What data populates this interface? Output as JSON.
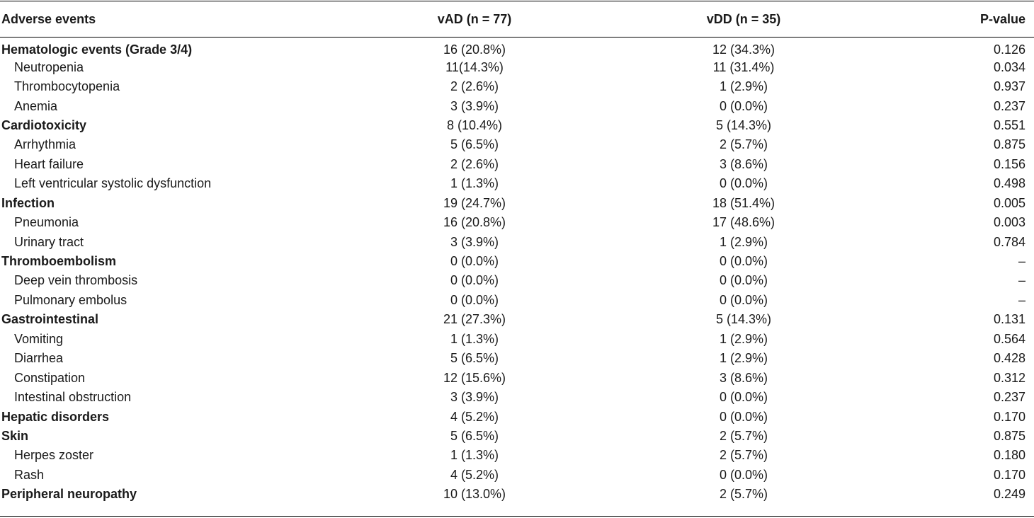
{
  "table": {
    "headers": [
      "Adverse events",
      "vAD (n = 77)",
      "vDD (n = 35)",
      "P-value"
    ],
    "rows": [
      {
        "label": "Hematologic events (Grade 3/4)",
        "group": true,
        "vad": "16 (20.8%)",
        "vdd": "12 (34.3%)",
        "p": "0.126"
      },
      {
        "label": "Neutropenia",
        "group": false,
        "vad": "11(14.3%)",
        "vdd": "11 (31.4%)",
        "p": "0.034"
      },
      {
        "label": "Thrombocytopenia",
        "group": false,
        "vad": "2 (2.6%)",
        "vdd": "1 (2.9%)",
        "p": "0.937"
      },
      {
        "label": "Anemia",
        "group": false,
        "vad": "3 (3.9%)",
        "vdd": "0 (0.0%)",
        "p": "0.237"
      },
      {
        "label": "Cardiotoxicity",
        "group": true,
        "vad": "8 (10.4%)",
        "vdd": "5 (14.3%)",
        "p": "0.551"
      },
      {
        "label": "Arrhythmia",
        "group": false,
        "vad": "5 (6.5%)",
        "vdd": "2 (5.7%)",
        "p": "0.875"
      },
      {
        "label": "Heart failure",
        "group": false,
        "vad": "2 (2.6%)",
        "vdd": "3 (8.6%)",
        "p": "0.156"
      },
      {
        "label": "Left ventricular systolic dysfunction",
        "group": false,
        "vad": "1 (1.3%)",
        "vdd": "0 (0.0%)",
        "p": "0.498"
      },
      {
        "label": "Infection",
        "group": true,
        "vad": "19 (24.7%)",
        "vdd": "18 (51.4%)",
        "p": "0.005"
      },
      {
        "label": "Pneumonia",
        "group": false,
        "vad": "16 (20.8%)",
        "vdd": "17 (48.6%)",
        "p": "0.003"
      },
      {
        "label": "Urinary tract",
        "group": false,
        "vad": "3 (3.9%)",
        "vdd": "1 (2.9%)",
        "p": "0.784"
      },
      {
        "label": "Thromboembolism",
        "group": true,
        "vad": "0 (0.0%)",
        "vdd": "0 (0.0%)",
        "p": "–"
      },
      {
        "label": "Deep vein thrombosis",
        "group": false,
        "vad": "0 (0.0%)",
        "vdd": "0 (0.0%)",
        "p": "–"
      },
      {
        "label": "Pulmonary embolus",
        "group": false,
        "vad": "0 (0.0%)",
        "vdd": "0 (0.0%)",
        "p": "–"
      },
      {
        "label": "Gastrointestinal",
        "group": true,
        "vad": "21 (27.3%)",
        "vdd": "5 (14.3%)",
        "p": "0.131"
      },
      {
        "label": "Vomiting",
        "group": false,
        "vad": "1 (1.3%)",
        "vdd": "1 (2.9%)",
        "p": "0.564"
      },
      {
        "label": "Diarrhea",
        "group": false,
        "vad": "5 (6.5%)",
        "vdd": "1 (2.9%)",
        "p": "0.428"
      },
      {
        "label": "Constipation",
        "group": false,
        "vad": "12 (15.6%)",
        "vdd": "3 (8.6%)",
        "p": "0.312"
      },
      {
        "label": "Intestinal obstruction",
        "group": false,
        "vad": "3 (3.9%)",
        "vdd": "0 (0.0%)",
        "p": "0.237"
      },
      {
        "label": "Hepatic disorders",
        "group": true,
        "vad": "4 (5.2%)",
        "vdd": "0 (0.0%)",
        "p": "0.170"
      },
      {
        "label": "Skin",
        "group": true,
        "vad": "5 (6.5%)",
        "vdd": "2 (5.7%)",
        "p": "0.875"
      },
      {
        "label": "Herpes zoster",
        "group": false,
        "vad": "1 (1.3%)",
        "vdd": "2 (5.7%)",
        "p": "0.180"
      },
      {
        "label": "Rash",
        "group": false,
        "vad": "4 (5.2%)",
        "vdd": "0 (0.0%)",
        "p": "0.170"
      },
      {
        "label": "Peripheral neuropathy",
        "group": true,
        "vad": "10 (13.0%)",
        "vdd": "2 (5.7%)",
        "p": "0.249"
      }
    ]
  }
}
